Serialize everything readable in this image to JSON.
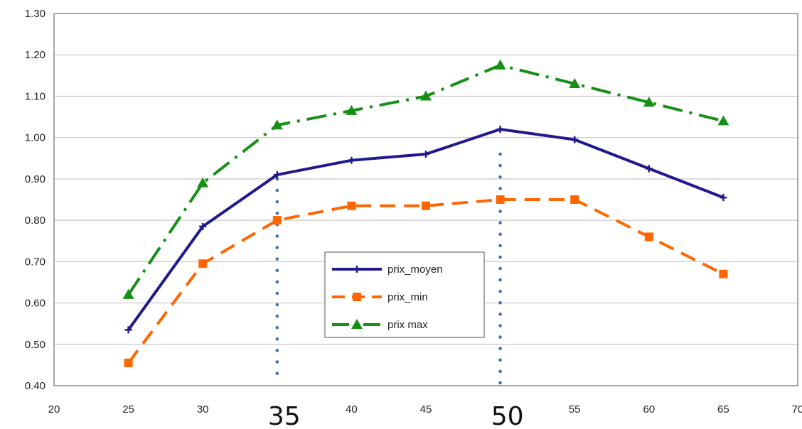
{
  "chart_data": {
    "type": "line",
    "title": "",
    "xlabel": "",
    "ylabel": "",
    "x": [
      25,
      30,
      35,
      40,
      45,
      50,
      55,
      60,
      65
    ],
    "xlim": [
      20,
      70
    ],
    "ylim": [
      0.4,
      1.3
    ],
    "x_ticks": [
      "20",
      "25",
      "30",
      "35",
      "40",
      "45",
      "50",
      "55",
      "60",
      "65",
      "70"
    ],
    "y_ticks": [
      "0.40",
      "0.50",
      "0.60",
      "0.70",
      "0.80",
      "0.90",
      "1.00",
      "1.10",
      "1.20",
      "1.30"
    ],
    "grid": true,
    "legend_position": "center",
    "series": [
      {
        "name": "prix_moyen",
        "color": "#1f1a8c",
        "dash": "solid",
        "marker": "plus",
        "values": [
          0.535,
          0.785,
          0.91,
          0.945,
          0.96,
          1.02,
          0.995,
          0.925,
          0.855
        ]
      },
      {
        "name": "prix_min",
        "color": "#ff6600",
        "dash": "dash",
        "marker": "square",
        "values": [
          0.455,
          0.695,
          0.8,
          0.835,
          0.835,
          0.85,
          0.85,
          0.76,
          0.67
        ]
      },
      {
        "name": "prix max",
        "color": "#159015",
        "dash": "dashdot",
        "marker": "triangle",
        "values": [
          0.62,
          0.89,
          1.03,
          1.065,
          1.1,
          1.175,
          1.13,
          1.085,
          1.04
        ]
      }
    ],
    "annotations": [
      {
        "x": 35,
        "label": "35",
        "style": "dotted-vertical",
        "color": "#3d6fb0",
        "y_top": 0.9
      },
      {
        "x": 50,
        "label": "50",
        "style": "dotted-vertical",
        "color": "#3d6fb0",
        "y_top": 0.96
      }
    ]
  }
}
